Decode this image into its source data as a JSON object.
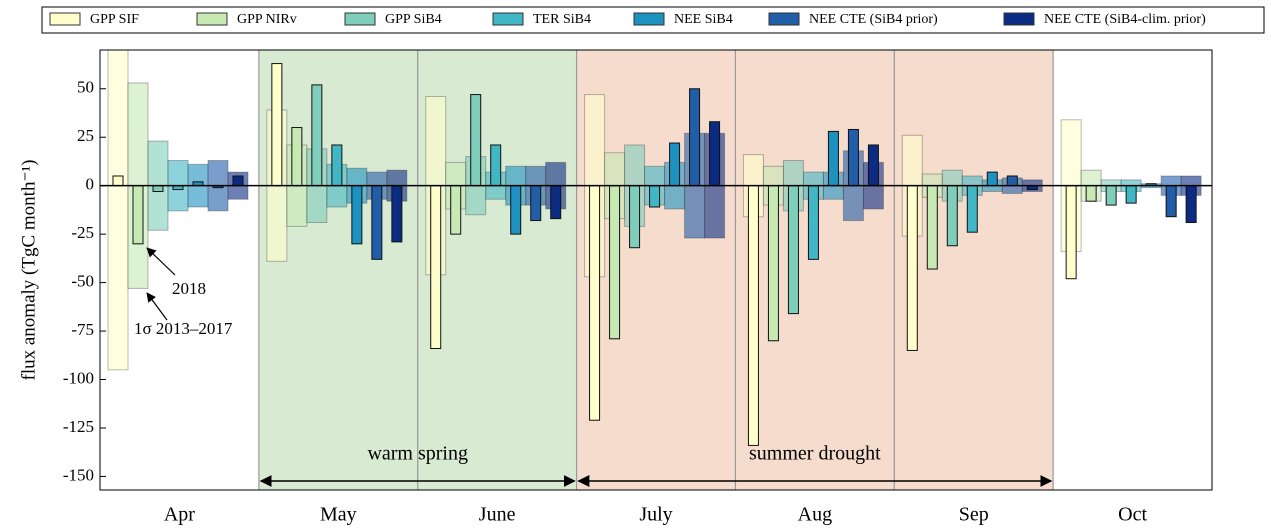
{
  "chart_data": {
    "type": "bar",
    "y_label": "flux anomaly (TgC month⁻¹)",
    "categories": [
      "Apr",
      "May",
      "June",
      "July",
      "Aug",
      "Sep",
      "Oct"
    ],
    "ylim": [
      -157,
      70
    ],
    "yticks": [
      50,
      25,
      0,
      -25,
      -50,
      -75,
      -100,
      -125,
      -150
    ],
    "series": [
      {
        "name": "GPP SIF",
        "color": "#ffffcc",
        "values": [
          5,
          63,
          -84,
          -121,
          -134,
          -85,
          -48
        ],
        "sigma": [
          95,
          39,
          46,
          47,
          16,
          26,
          34
        ]
      },
      {
        "name": "GPP NIRv",
        "color": "#c7e9b4",
        "values": [
          -30,
          30,
          -25,
          -79,
          -80,
          -43,
          -8
        ],
        "sigma": [
          53,
          21,
          12,
          17,
          10,
          6,
          8
        ]
      },
      {
        "name": "GPP SiB4",
        "color": "#7fcdbb",
        "values": [
          -3,
          52,
          47,
          -32,
          -66,
          -31,
          -10
        ],
        "sigma": [
          23,
          19,
          15,
          21,
          13,
          8,
          3
        ]
      },
      {
        "name": "TER SiB4",
        "color": "#41b6c4",
        "values": [
          -2,
          21,
          21,
          -11,
          -38,
          -24,
          -9
        ],
        "sigma": [
          13,
          11,
          7,
          10,
          7,
          5,
          3
        ]
      },
      {
        "name": "NEE SiB4",
        "color": "#1d91c0",
        "values": [
          2,
          -30,
          -25,
          22,
          28,
          7,
          1
        ],
        "sigma": [
          11,
          9,
          10,
          12,
          7,
          3,
          1
        ]
      },
      {
        "name": "NEE CTE (SiB4 prior)",
        "color": "#225ea8",
        "values": [
          -1,
          -38,
          -18,
          50,
          29,
          5,
          -16
        ],
        "sigma": [
          13,
          7,
          10,
          27,
          18,
          4,
          5
        ]
      },
      {
        "name": "NEE CTE (SiB4-clim. prior)",
        "color": "#0c2c84",
        "values": [
          5,
          -29,
          -17,
          33,
          21,
          -2,
          -19
        ],
        "sigma": [
          7,
          8,
          12,
          27,
          12,
          3,
          5
        ]
      }
    ],
    "periods": [
      {
        "label": "warm spring",
        "color": "#d9ead3"
      },
      {
        "label": "summer drought",
        "color": "#f5dccd"
      }
    ],
    "annotations": [
      "2018",
      "1σ 2013–2017"
    ]
  }
}
